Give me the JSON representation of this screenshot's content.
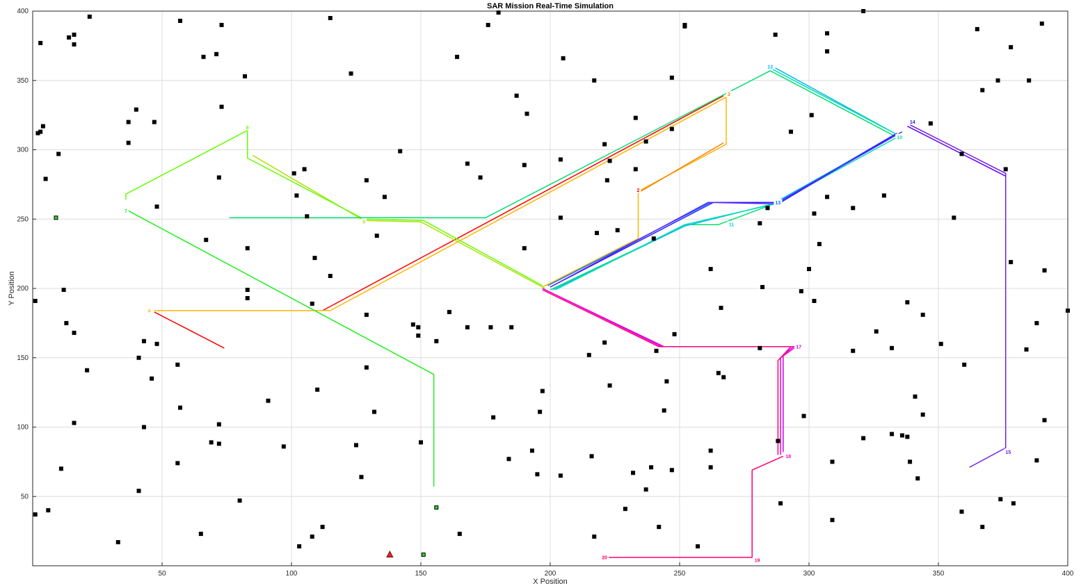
{
  "chart_data": {
    "type": "scatter",
    "title": "SAR Mission Real-Time Simulation",
    "xlabel": "X Position",
    "ylabel": "Y Position",
    "xlim": [
      0,
      400
    ],
    "ylim": [
      0,
      400
    ],
    "xticks": [
      50,
      100,
      150,
      200,
      250,
      300,
      350,
      400
    ],
    "yticks": [
      50,
      100,
      150,
      200,
      250,
      300,
      350,
      400
    ],
    "grid": true,
    "obstacles": [
      [
        22,
        396
      ],
      [
        57,
        393
      ],
      [
        115,
        395
      ],
      [
        73,
        390
      ],
      [
        3,
        377
      ],
      [
        16,
        383
      ],
      [
        14,
        381
      ],
      [
        16,
        376
      ],
      [
        66,
        367
      ],
      [
        71,
        369
      ],
      [
        180,
        399
      ],
      [
        176,
        390
      ],
      [
        123,
        355
      ],
      [
        82,
        353
      ],
      [
        73,
        331
      ],
      [
        40,
        329
      ],
      [
        37,
        320
      ],
      [
        47,
        320
      ],
      [
        4,
        317
      ],
      [
        3,
        313
      ],
      [
        2,
        312
      ],
      [
        37,
        305
      ],
      [
        10,
        297
      ],
      [
        5,
        279
      ],
      [
        72,
        280
      ],
      [
        101,
        283
      ],
      [
        105,
        286
      ],
      [
        102,
        267
      ],
      [
        48,
        259
      ],
      [
        106,
        252
      ],
      [
        129,
        278
      ],
      [
        136,
        266
      ],
      [
        142,
        299
      ],
      [
        133,
        238
      ],
      [
        83,
        229
      ],
      [
        67,
        235
      ],
      [
        109,
        222
      ],
      [
        115,
        209
      ],
      [
        108,
        189
      ],
      [
        83,
        199
      ],
      [
        83,
        193
      ],
      [
        1,
        191
      ],
      [
        12,
        199
      ],
      [
        13,
        175
      ],
      [
        16,
        168
      ],
      [
        43,
        162
      ],
      [
        48,
        160
      ],
      [
        41,
        150
      ],
      [
        46,
        135
      ],
      [
        21,
        141
      ],
      [
        56,
        145
      ],
      [
        57,
        114
      ],
      [
        16,
        103
      ],
      [
        11,
        70
      ],
      [
        43,
        100
      ],
      [
        56,
        74
      ],
      [
        91,
        119
      ],
      [
        72,
        102
      ],
      [
        69,
        89
      ],
      [
        72,
        88
      ],
      [
        97,
        86
      ],
      [
        110,
        127
      ],
      [
        129,
        143
      ],
      [
        132,
        111
      ],
      [
        125,
        87
      ],
      [
        127,
        64
      ],
      [
        80,
        47
      ],
      [
        41,
        54
      ],
      [
        33,
        17
      ],
      [
        65,
        23
      ],
      [
        103,
        14
      ],
      [
        108,
        21
      ],
      [
        112,
        28
      ],
      [
        1,
        37
      ],
      [
        6,
        40
      ],
      [
        164,
        367
      ],
      [
        168,
        290
      ],
      [
        173,
        280
      ],
      [
        187,
        339
      ],
      [
        191,
        326
      ],
      [
        190,
        289
      ],
      [
        205,
        366
      ],
      [
        204,
        293
      ],
      [
        204,
        251
      ],
      [
        217,
        350
      ],
      [
        221,
        304
      ],
      [
        223,
        292
      ],
      [
        222,
        278
      ],
      [
        218,
        240
      ],
      [
        226,
        242
      ],
      [
        233,
        323
      ],
      [
        237,
        306
      ],
      [
        233,
        286
      ],
      [
        240,
        236
      ],
      [
        247,
        352
      ],
      [
        247,
        315
      ],
      [
        252,
        389
      ],
      [
        252,
        390
      ],
      [
        190,
        229
      ],
      [
        129,
        181
      ],
      [
        147,
        174
      ],
      [
        149,
        172
      ],
      [
        149,
        166
      ],
      [
        156,
        162
      ],
      [
        161,
        183
      ],
      [
        168,
        172
      ],
      [
        177,
        172
      ],
      [
        185,
        172
      ],
      [
        178,
        107
      ],
      [
        184,
        77
      ],
      [
        193,
        83
      ],
      [
        196,
        111
      ],
      [
        197,
        126
      ],
      [
        195,
        66
      ],
      [
        204,
        65
      ],
      [
        215,
        152
      ],
      [
        221,
        161
      ],
      [
        223,
        130
      ],
      [
        216,
        79
      ],
      [
        217,
        21
      ],
      [
        229,
        41
      ],
      [
        232,
        67
      ],
      [
        237,
        55
      ],
      [
        239,
        71
      ],
      [
        242,
        28
      ],
      [
        241,
        155
      ],
      [
        245,
        133
      ],
      [
        244,
        112
      ],
      [
        247,
        69
      ],
      [
        248,
        167
      ],
      [
        150,
        89
      ],
      [
        165,
        23
      ],
      [
        257,
        14
      ],
      [
        262,
        214
      ],
      [
        262,
        83
      ],
      [
        262,
        71
      ],
      [
        265,
        139
      ],
      [
        266,
        186
      ],
      [
        267,
        136
      ],
      [
        281,
        247
      ],
      [
        284,
        258
      ],
      [
        282,
        201
      ],
      [
        281,
        157
      ],
      [
        287,
        383
      ],
      [
        293,
        313
      ],
      [
        288,
        90
      ],
      [
        289,
        45
      ],
      [
        301,
        325
      ],
      [
        300,
        214
      ],
      [
        302,
        254
      ],
      [
        302,
        191
      ],
      [
        304,
        232
      ],
      [
        307,
        384
      ],
      [
        307,
        371
      ],
      [
        307,
        266
      ],
      [
        309,
        75
      ],
      [
        309,
        33
      ],
      [
        317,
        258
      ],
      [
        317,
        155
      ],
      [
        297,
        198
      ],
      [
        298,
        108
      ],
      [
        321,
        400
      ],
      [
        321,
        92
      ],
      [
        326,
        169
      ],
      [
        329,
        267
      ],
      [
        332,
        95
      ],
      [
        332,
        157
      ],
      [
        336,
        94
      ],
      [
        338,
        93
      ],
      [
        339,
        75
      ],
      [
        338,
        190
      ],
      [
        341,
        122
      ],
      [
        342,
        63
      ],
      [
        344,
        109
      ],
      [
        344,
        181
      ],
      [
        347,
        319
      ],
      [
        351,
        160
      ],
      [
        356,
        251
      ],
      [
        359,
        297
      ],
      [
        360,
        145
      ],
      [
        359,
        39
      ],
      [
        365,
        387
      ],
      [
        367,
        343
      ],
      [
        367,
        28
      ],
      [
        373,
        350
      ],
      [
        374,
        48
      ],
      [
        376,
        286
      ],
      [
        378,
        374
      ],
      [
        378,
        219
      ],
      [
        379,
        45
      ],
      [
        385,
        350
      ],
      [
        384,
        156
      ],
      [
        388,
        175
      ],
      [
        388,
        76
      ],
      [
        390,
        391
      ],
      [
        391,
        213
      ],
      [
        391,
        105
      ],
      [
        400,
        184
      ]
    ],
    "targets": [
      [
        9,
        251
      ],
      [
        156,
        42
      ],
      [
        151,
        8
      ]
    ],
    "start_marker": [
      138,
      8
    ],
    "waypoints": [
      {
        "label": "2",
        "x": 234,
        "y": 271,
        "color": "#ff0000"
      },
      {
        "label": "3",
        "x": 269,
        "y": 340,
        "color": "#ff8000"
      },
      {
        "label": "4",
        "x": 45,
        "y": 184,
        "color": "#ffb400"
      },
      {
        "label": "5",
        "x": 128,
        "y": 248,
        "color": "#b0e000"
      },
      {
        "label": "6",
        "x": 83,
        "y": 316,
        "color": "#66ff00"
      },
      {
        "label": "7",
        "x": 36,
        "y": 256,
        "color": "#22ee22"
      },
      {
        "label": "10",
        "x": 335,
        "y": 309,
        "color": "#00e0a0"
      },
      {
        "label": "11",
        "x": 270,
        "y": 246,
        "color": "#00d8e8"
      },
      {
        "label": "12",
        "x": 285,
        "y": 360,
        "color": "#00b8f0"
      },
      {
        "label": "13",
        "x": 288,
        "y": 262,
        "color": "#0070ff"
      },
      {
        "label": "14",
        "x": 340,
        "y": 320,
        "color": "#2020ff"
      },
      {
        "label": "15",
        "x": 377,
        "y": 82,
        "color": "#6020ff"
      },
      {
        "label": "17",
        "x": 296,
        "y": 158,
        "color": "#c000ff"
      },
      {
        "label": "18",
        "x": 292,
        "y": 79,
        "color": "#ff00c0"
      },
      {
        "label": "19",
        "x": 280,
        "y": 4,
        "color": "#ff0080"
      },
      {
        "label": "20",
        "x": 221,
        "y": 6,
        "color": "#ff0060"
      }
    ],
    "paths": [
      {
        "color": "#ff0000",
        "points": [
          [
            74,
            157
          ],
          [
            47,
            183
          ]
        ]
      },
      {
        "color": "#ff0000",
        "points": [
          [
            112,
            184
          ],
          [
            267,
            339
          ]
        ]
      },
      {
        "color": "#ffb400",
        "points": [
          [
            47,
            184
          ],
          [
            115,
            184
          ],
          [
            268,
            338
          ],
          [
            268,
            304
          ],
          [
            234,
            270
          ],
          [
            234,
            236
          ],
          [
            197,
            201
          ]
        ]
      },
      {
        "color": "#ff8000",
        "points": [
          [
            234,
            269
          ],
          [
            267,
            305
          ]
        ]
      },
      {
        "color": "#b0e000",
        "points": [
          [
            85,
            296
          ],
          [
            128,
            249
          ],
          [
            150,
            248
          ],
          [
            198,
            200
          ]
        ]
      },
      {
        "color": "#66ff00",
        "points": [
          [
            36,
            264
          ],
          [
            36,
            268
          ],
          [
            83,
            314
          ],
          [
            83,
            294
          ],
          [
            128,
            250
          ],
          [
            151,
            249
          ],
          [
            197,
            202
          ]
        ]
      },
      {
        "color": "#22ee22",
        "points": [
          [
            37,
            256
          ],
          [
            155,
            138
          ],
          [
            155,
            57
          ]
        ]
      },
      {
        "color": "#00e070",
        "points": [
          [
            76,
            251
          ],
          [
            175,
            251
          ],
          [
            285,
            357
          ],
          [
            333,
            310
          ],
          [
            285,
            260
          ],
          [
            265,
            246
          ],
          [
            253,
            246
          ],
          [
            200,
            199
          ]
        ]
      },
      {
        "color": "#00b8f0",
        "points": [
          [
            287,
            359
          ],
          [
            334,
            311
          ],
          [
            286,
            261
          ],
          [
            252,
            245
          ],
          [
            201,
            199
          ]
        ]
      },
      {
        "color": "#00e0b0",
        "points": [
          [
            286,
            358
          ],
          [
            335,
            310
          ],
          [
            287,
            261
          ],
          [
            252,
            246
          ],
          [
            202,
            199
          ]
        ]
      },
      {
        "color": "#0070ff",
        "points": [
          [
            333,
            311
          ],
          [
            288,
            262
          ],
          [
            262,
            262
          ],
          [
            199,
            202
          ]
        ]
      },
      {
        "color": "#2020ff",
        "points": [
          [
            334,
            312
          ],
          [
            289,
            262
          ],
          [
            263,
            262
          ],
          [
            200,
            201
          ]
        ]
      },
      {
        "color": "#6020ff",
        "points": [
          [
            336,
            313
          ],
          [
            287,
            261
          ],
          [
            261,
            262
          ],
          [
            201,
            202
          ]
        ]
      },
      {
        "color": "#7020e0",
        "points": [
          [
            339,
            318
          ],
          [
            376,
            283
          ],
          [
            376,
            85
          ],
          [
            362,
            71
          ]
        ]
      },
      {
        "color": "#6000ff",
        "points": [
          [
            338,
            317
          ],
          [
            376,
            281
          ]
        ]
      },
      {
        "color": "#c000ff",
        "points": [
          [
            197,
            200
          ],
          [
            244,
            158
          ],
          [
            294,
            158
          ],
          [
            290,
            152
          ],
          [
            290,
            82
          ]
        ]
      },
      {
        "color": "#ff00c0",
        "points": [
          [
            198,
            199
          ],
          [
            243,
            158
          ],
          [
            295,
            158
          ],
          [
            289,
            150
          ],
          [
            289,
            80
          ]
        ]
      },
      {
        "color": "#ff0080",
        "points": [
          [
            197,
            199
          ],
          [
            242,
            158
          ],
          [
            293,
            158
          ],
          [
            288,
            148
          ],
          [
            288,
            80
          ]
        ]
      },
      {
        "color": "#ff0070",
        "points": [
          [
            290,
            79
          ],
          [
            278,
            69
          ],
          [
            278,
            6
          ],
          [
            222,
            6
          ]
        ]
      }
    ]
  }
}
